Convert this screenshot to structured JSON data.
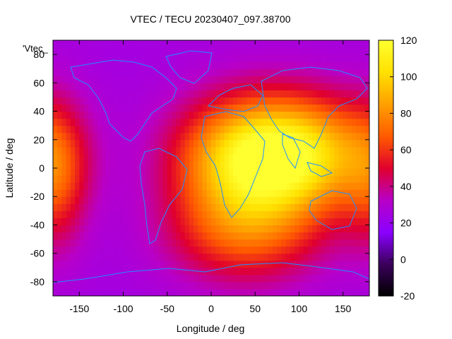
{
  "chart_data": {
    "type": "heatmap",
    "title": "VTEC / TECU 20230407_097.38700",
    "xlabel": "Longitude / deg",
    "ylabel": "Latitude / deg",
    "key_label": "'Vtec_",
    "xlim": [
      -180,
      180
    ],
    "ylim": [
      -90,
      90
    ],
    "xticks": [
      -150,
      -100,
      -50,
      0,
      50,
      100,
      150
    ],
    "yticks": [
      -80,
      -60,
      -40,
      -20,
      0,
      20,
      40,
      60,
      80
    ],
    "colorbar": {
      "range": [
        -20,
        120
      ],
      "ticks": [
        -20,
        0,
        20,
        40,
        60,
        80,
        100,
        120
      ],
      "palette": [
        "#000000",
        "#3a005a",
        "#8a00ff",
        "#b800c8",
        "#e0002e",
        "#ff5a00",
        "#ff9f00",
        "#ffe000",
        "#ffff30"
      ]
    },
    "vtec_peaks": [
      {
        "lon": 95,
        "lat": 10,
        "value": 112,
        "wlon": 60,
        "wlat": 28
      },
      {
        "lon": 30,
        "lat": 5,
        "value": 80,
        "wlon": 55,
        "wlat": 30
      },
      {
        "lon": 40,
        "lat": -45,
        "value": 68,
        "wlon": 60,
        "wlat": 25
      },
      {
        "lon": -175,
        "lat": -5,
        "value": 58,
        "wlon": 25,
        "wlat": 35
      }
    ],
    "background_vtec": 25,
    "coastline_color": "#1e90ff"
  }
}
